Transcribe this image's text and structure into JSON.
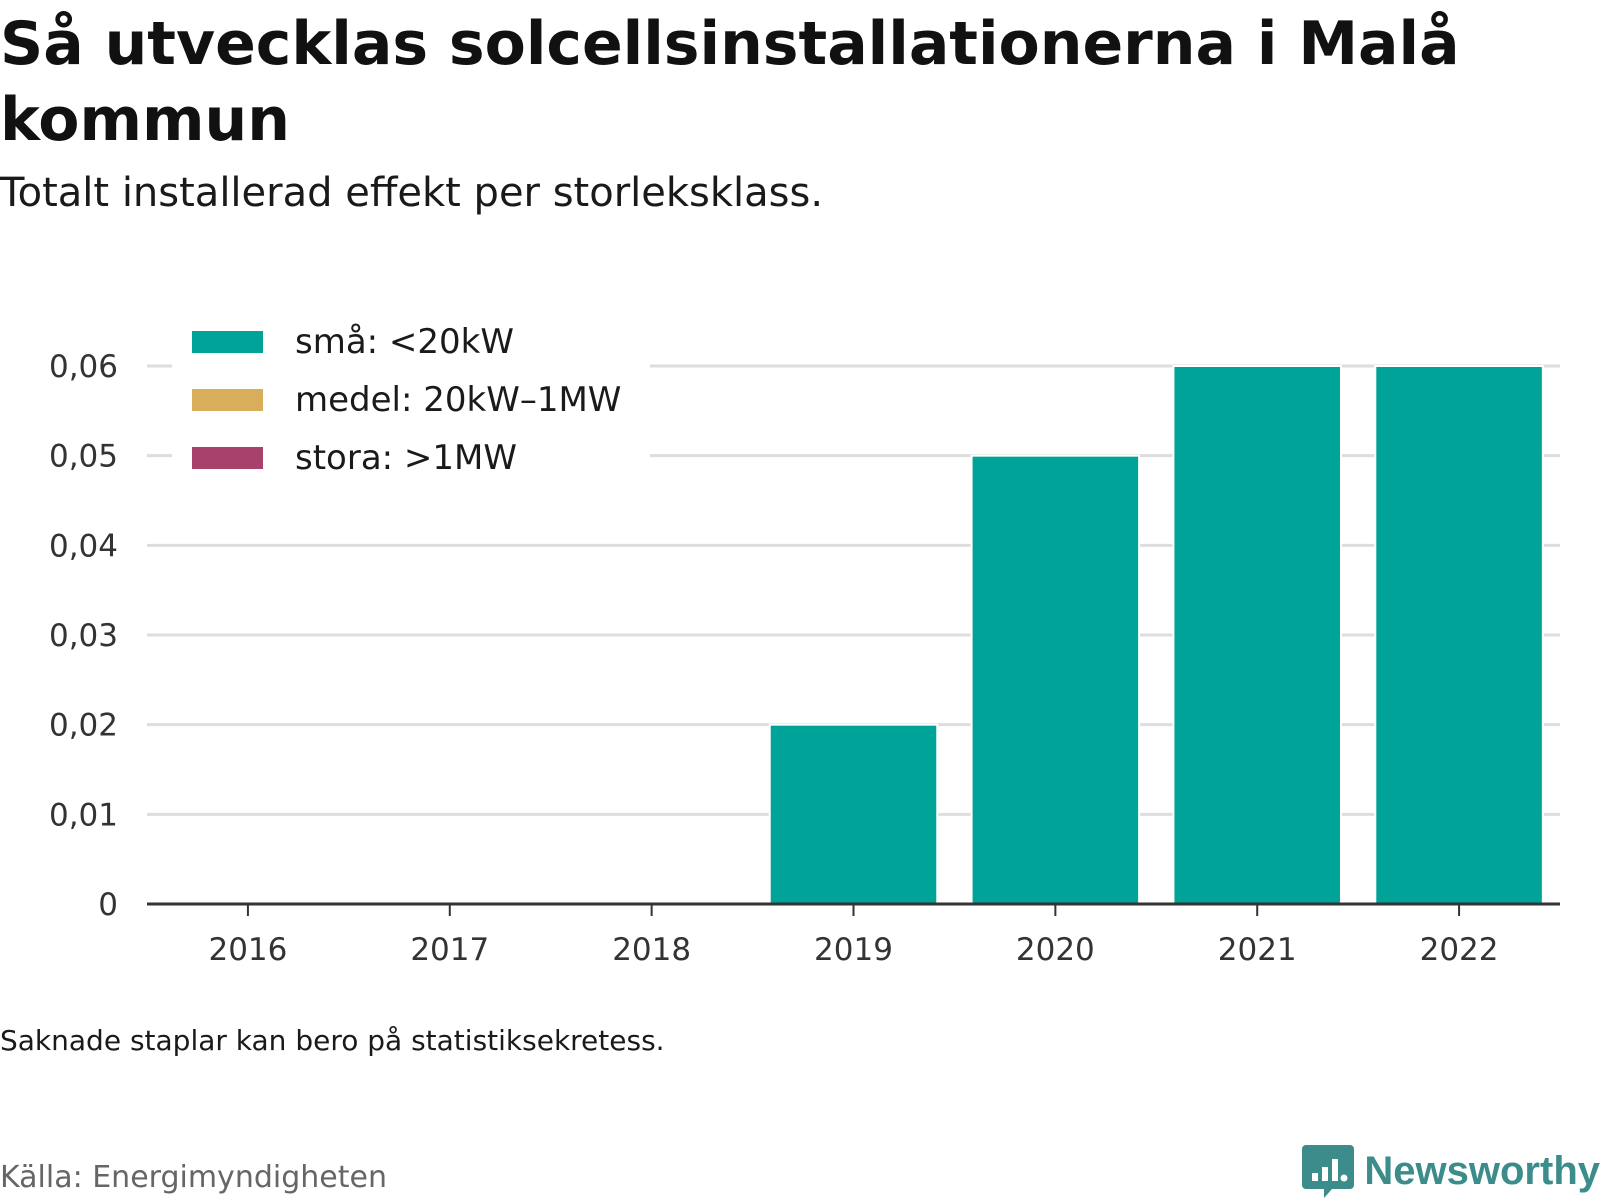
{
  "header": {
    "title": "Så utvecklas solcellsinstallationerna i Malå kommun",
    "subtitle": "Totalt installerad effekt per storleksklass."
  },
  "footer": {
    "note": "Saknade staplar kan bero på statistiksekretess.",
    "source": "Källa: Energimyndigheten",
    "brand": "Newsworthy",
    "brand_icon": "chart-bubble-icon"
  },
  "colors": {
    "sma": "#00a398",
    "medel": "#d9ae5a",
    "stora": "#a8416b",
    "grid": "#dddddd",
    "axis": "#333333",
    "brand": "#3b8c8a"
  },
  "chart_data": {
    "type": "bar",
    "stacked": true,
    "categories": [
      "2016",
      "2017",
      "2018",
      "2019",
      "2020",
      "2021",
      "2022"
    ],
    "series": [
      {
        "name": "små: <20kW",
        "color": "#00a398",
        "values": [
          0,
          0,
          0,
          0.02,
          0.05,
          0.06,
          0.06
        ]
      },
      {
        "name": "medel: 20kW–1MW",
        "color": "#d9ae5a",
        "values": [
          0,
          0,
          0,
          0,
          0,
          0,
          0
        ]
      },
      {
        "name": "stora: >1MW",
        "color": "#a8416b",
        "values": [
          0,
          0,
          0,
          0,
          0,
          0,
          0
        ]
      }
    ],
    "ylim": [
      0,
      0.06
    ],
    "yticks": [
      0,
      0.01,
      0.02,
      0.03,
      0.04,
      0.05,
      0.06
    ],
    "ytick_labels": [
      "0",
      "0,01",
      "0,02",
      "0,03",
      "0,04",
      "0,05",
      "0,06"
    ],
    "grid": true,
    "legend_position": "top-left"
  }
}
